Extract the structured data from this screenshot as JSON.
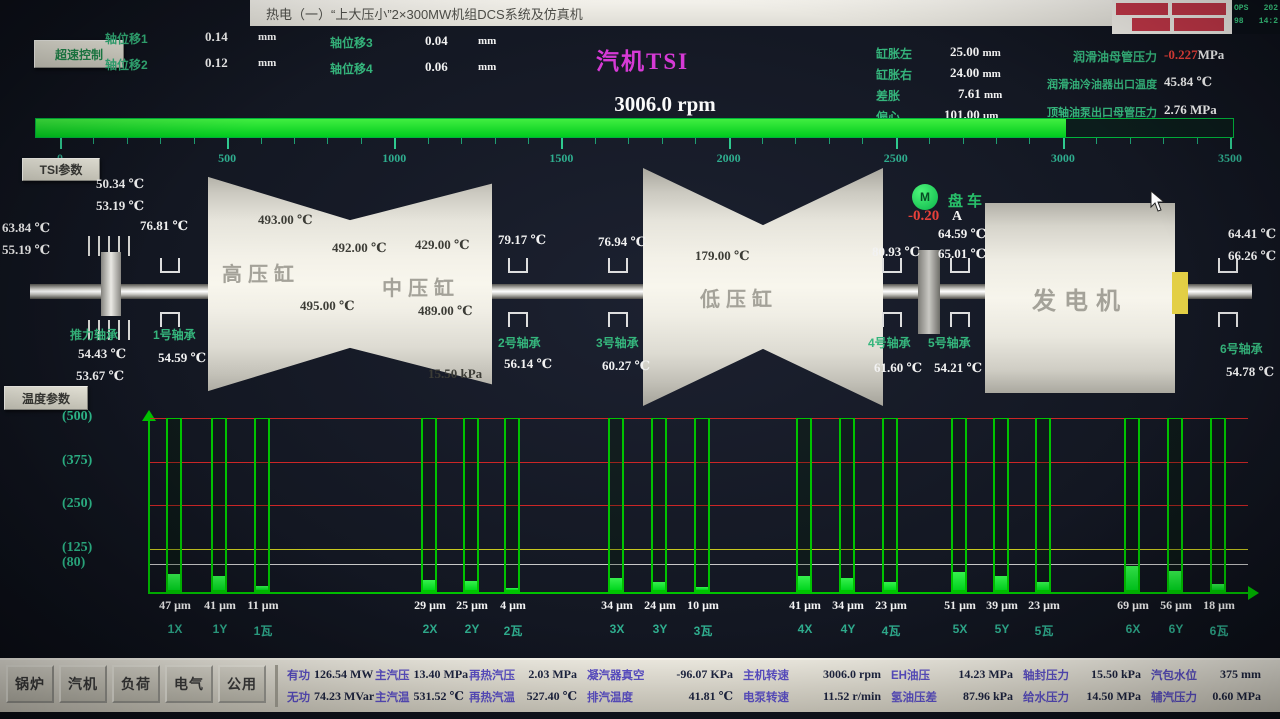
{
  "window": {
    "title": "热电（一）“上大压小”2×300MW机组DCS系统及仿真机",
    "ops_label": "OPS",
    "ops_station": "98",
    "ops_date": "202",
    "ops_time": "14:2"
  },
  "colors": {
    "alarm_red": "#e8403a",
    "bar_green": "#00d61e",
    "label_teal": "#35b57c",
    "magenta": "#d63ad6",
    "grid_red": "#cc2626",
    "grid_yellow": "#c8c81e",
    "grid_white": "#c8c8c8"
  },
  "top": {
    "overspeed_btn": "超速控制",
    "tsi_btn": "TSI参数",
    "screen_title": "汽机TSI",
    "displacements": [
      {
        "label": "轴位移1",
        "value": "0.14",
        "unit": "mm"
      },
      {
        "label": "轴位移2",
        "value": "0.12",
        "unit": "mm"
      },
      {
        "label": "轴位移3",
        "value": "0.04",
        "unit": "mm"
      },
      {
        "label": "轴位移4",
        "value": "0.06",
        "unit": "mm"
      }
    ],
    "expansion": [
      {
        "label": "缸胀左",
        "value": "25.00",
        "unit": "mm"
      },
      {
        "label": "缸胀右",
        "value": "24.00",
        "unit": "mm"
      },
      {
        "label": "差胀",
        "value": "7.61",
        "unit": "mm"
      },
      {
        "label": "偏心",
        "value": "101.00",
        "unit": "μm"
      }
    ],
    "oil": [
      {
        "label": "润滑油母管压力",
        "value": "-0.227",
        "unit": "MPa",
        "alarm": true
      },
      {
        "label": "润滑油冷油器出口温度",
        "value": "45.84",
        "unit": "℃",
        "alarm": false
      },
      {
        "label": "顶轴油泵出口母管压力",
        "value": "2.76",
        "unit": "MPa",
        "alarm": false
      }
    ],
    "speed": {
      "value": "3006.0 rpm",
      "rpm": 3006,
      "max": 3500,
      "ticks": [
        "0",
        "500",
        "1000",
        "1500",
        "2000",
        "2500",
        "3000",
        "3500"
      ]
    }
  },
  "diagram": {
    "left_shaft_temps": [
      "63.84 ℃",
      "55.19 ℃"
    ],
    "thrust_top_temps": [
      "50.34 ℃",
      "53.19 ℃"
    ],
    "thrust_bearing": {
      "label": "推力轴承",
      "temps": [
        "54.43 ℃",
        "53.67 ℃"
      ]
    },
    "bearing1": {
      "label": "1号轴承",
      "top": "76.81 ℃",
      "bottom": "54.59 ℃"
    },
    "hp_cylinder": {
      "label": "高压缸",
      "temps": [
        "493.00 ℃",
        "492.00 ℃",
        "495.00 ℃"
      ]
    },
    "ip_cylinder": {
      "label": "中压缸",
      "temps": [
        "429.00 ℃",
        "489.00 ℃"
      ]
    },
    "gland_pressure": "15.50 kPa",
    "bearing2": {
      "label": "2号轴承",
      "top": "79.17 ℃",
      "bottom": "56.14 ℃"
    },
    "bearing3": {
      "label": "3号轴承",
      "top": "76.94 ℃",
      "bottom": "60.27 ℃"
    },
    "lp_cylinder": {
      "label": "低压缸",
      "temp": "179.00 ℃"
    },
    "bearing4": {
      "label": "4号轴承",
      "top": "80.93 ℃",
      "bottom": "61.60 ℃"
    },
    "bearing5": {
      "label": "5号轴承",
      "top": [
        "64.59 ℃",
        "65.01 ℃"
      ],
      "bottom": "54.21 ℃"
    },
    "turning_gear": {
      "label": "盘车",
      "motor": "M",
      "current": "-0.20",
      "unit": "A"
    },
    "generator": {
      "label": "发电机"
    },
    "bearing6": {
      "label": "6号轴承",
      "top": [
        "64.41 ℃",
        "66.26 ℃"
      ],
      "bottom": "54.78 ℃"
    },
    "temp_btn": "温度参数"
  },
  "chart_data": {
    "type": "bar",
    "categories": [
      "1X",
      "1Y",
      "1瓦",
      "2X",
      "2Y",
      "2瓦",
      "3X",
      "3Y",
      "3瓦",
      "4X",
      "4Y",
      "4瓦",
      "5X",
      "5Y",
      "5瓦",
      "6X",
      "6Y",
      "6瓦"
    ],
    "values": [
      47,
      41,
      11,
      29,
      25,
      4,
      34,
      24,
      10,
      41,
      34,
      23,
      51,
      39,
      23,
      69,
      56,
      18
    ],
    "unit": "μm",
    "title": "",
    "xlabel": "",
    "ylabel": "",
    "ylim": [
      0,
      500
    ],
    "ytick_labels": [
      "(500)",
      "(375)",
      "(250)",
      "(125)",
      "(80)"
    ],
    "gridlines": [
      {
        "value": 500,
        "color": "#cc2626"
      },
      {
        "value": 375,
        "color": "#cc2626"
      },
      {
        "value": 250,
        "color": "#cc2626"
      },
      {
        "value": 125,
        "color": "#c8c81e"
      },
      {
        "value": 80,
        "color": "#c8c8c8"
      }
    ],
    "grid": true,
    "legend": "none"
  },
  "status_bar": {
    "tabs": [
      "锅炉",
      "汽机",
      "负荷",
      "电气",
      "公用"
    ],
    "row1": [
      {
        "label": "有功",
        "value": "126.54 MW"
      },
      {
        "label": "主汽压",
        "value": "13.40 MPa"
      },
      {
        "label": "再热汽压",
        "value": "2.03 MPa"
      },
      {
        "label": "凝汽器真空",
        "value": "-96.07 KPa"
      },
      {
        "label": "主机转速",
        "value": "3006.0 rpm"
      },
      {
        "label": "EH油压",
        "value": "14.23 MPa"
      },
      {
        "label": "轴封压力",
        "value": "15.50 kPa"
      },
      {
        "label": "汽包水位",
        "value": "375 mm"
      }
    ],
    "row2": [
      {
        "label": "无功",
        "value": "74.23 MVar"
      },
      {
        "label": "主汽温",
        "value": "531.52 ℃"
      },
      {
        "label": "再热汽温",
        "value": "527.40 ℃"
      },
      {
        "label": "排汽温度",
        "value": "41.81 ℃"
      },
      {
        "label": "电泵转速",
        "value": "11.52 r/min"
      },
      {
        "label": "氢油压差",
        "value": "87.96 kPa"
      },
      {
        "label": "给水压力",
        "value": "14.50 MPa"
      },
      {
        "label": "辅汽压力",
        "value": "0.60 MPa"
      }
    ]
  }
}
